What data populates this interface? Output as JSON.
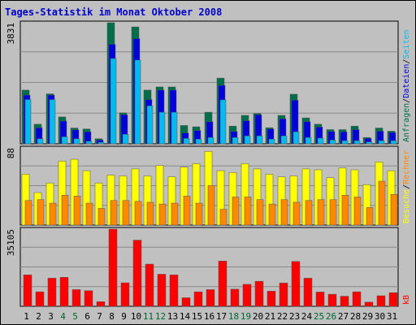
{
  "chart_data": {
    "type": "bar",
    "title": "Tages-Statistik im Monat Oktober 2008",
    "x": [
      "1",
      "2",
      "3",
      "4",
      "5",
      "6",
      "7",
      "8",
      "9",
      "10",
      "11",
      "12",
      "13",
      "14",
      "15",
      "16",
      "17",
      "18",
      "19",
      "20",
      "21",
      "22",
      "23",
      "24",
      "25",
      "26",
      "27",
      "28",
      "29",
      "30",
      "31"
    ],
    "weekend_color": "#006633",
    "weekday_color": "#000000",
    "weekend_days": [
      "4",
      "5",
      "11",
      "12",
      "18",
      "19",
      "25",
      "26"
    ],
    "panels": [
      {
        "id": "top",
        "ymax_label": "3831",
        "ylim": [
          0,
          3831
        ],
        "series": [
          {
            "name": "Anfragen",
            "color": "#006e4a",
            "values": [
              1700,
              620,
              1580,
              850,
              500,
              470,
              160,
              3831,
              980,
              3700,
              1700,
              1800,
              1800,
              580,
              540,
              1000,
              2080,
              560,
              900,
              960,
              510,
              900,
              1570,
              820,
              620,
              450,
              450,
              560,
              200,
              500,
              400
            ]
          },
          {
            "name": "Dateien",
            "color": "#0000dd",
            "values": [
              1540,
              510,
              1540,
              720,
              440,
              380,
              120,
              3150,
              920,
              3330,
              1400,
              1700,
              1700,
              340,
              420,
              700,
              1850,
              390,
              730,
              920,
              470,
              790,
              1380,
              700,
              530,
              390,
              380,
              450,
              170,
              400,
              360
            ]
          },
          {
            "name": "Seiten",
            "color": "#00bbee",
            "values": [
              1400,
              160,
              1400,
              220,
              160,
              80,
              50,
              2700,
              300,
              2650,
              1200,
              1000,
              1000,
              170,
              150,
              200,
              1390,
              200,
              250,
              250,
              150,
              250,
              380,
              200,
              180,
              120,
              100,
              100,
              60,
              100,
              100
            ]
          }
        ],
        "legend": [
          {
            "name": "Anfragen",
            "color": "#006e4a"
          },
          {
            "name": "/",
            "color": "#000000"
          },
          {
            "name": "Dateien",
            "color": "#0000dd"
          },
          {
            "name": "/",
            "color": "#000000"
          },
          {
            "name": "Seiten",
            "color": "#00bbee"
          }
        ]
      },
      {
        "id": "middle",
        "ymax_label": "88",
        "ylim": [
          0,
          88
        ],
        "series": [
          {
            "name": "Besuche",
            "color": "#ffff00",
            "values": [
              58,
              37,
              48,
              73,
              75,
              62,
              48,
              57,
              56,
              64,
              56,
              68,
              55,
              66,
              70,
              84,
              62,
              60,
              70,
              64,
              58,
              55,
              56,
              64,
              63,
              54,
              65,
              63,
              46,
              72,
              62
            ]
          },
          {
            "name": "Rechner",
            "color": "#ff8800",
            "values": [
              28,
              29,
              25,
              34,
              33,
              25,
              19,
              28,
              28,
              27,
              26,
              24,
              25,
              33,
              25,
              45,
              18,
              32,
              32,
              29,
              24,
              29,
              26,
              28,
              29,
              29,
              34,
              32,
              20,
              50,
              35
            ]
          }
        ],
        "legend": [
          {
            "name": "Besuche",
            "color": "#ffff00"
          },
          {
            "name": "/",
            "color": "#000000"
          },
          {
            "name": "Rechner",
            "color": "#ff8800"
          }
        ]
      },
      {
        "id": "bottom",
        "ymax_label": "35105",
        "ylim": [
          0,
          35105
        ],
        "series": [
          {
            "name": "kB",
            "color": "#ff0000",
            "values": [
              14300,
              6600,
              12800,
              13200,
              7600,
              7100,
              2100,
              35105,
              10700,
              30100,
              19200,
              14600,
              14300,
              3900,
              6600,
              7600,
              20600,
              7800,
              10000,
              11400,
              6900,
              10600,
              20400,
              12800,
              6500,
              5500,
              4600,
              6600,
              1900,
              4800,
              6200
            ]
          }
        ],
        "legend": [
          {
            "name": "kB",
            "color": "#ff0000"
          }
        ]
      }
    ]
  }
}
